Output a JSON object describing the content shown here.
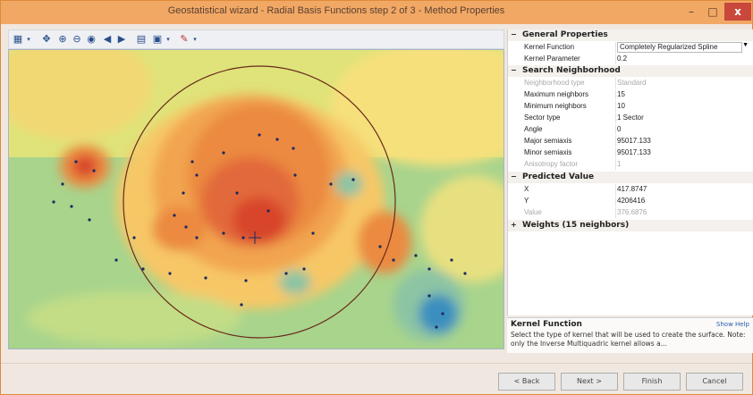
{
  "window": {
    "title": "Geostatistical wizard - Radial Basis Functions step 2 of 3 - Method Properties",
    "minimize_glyph": "–",
    "maximize_glyph": "□",
    "close_glyph": "x"
  },
  "toolbar": {
    "icons": [
      "layers-icon",
      "dropdown-arrow-icon",
      "pan-icon",
      "zoom-in-icon",
      "zoom-out-icon",
      "full-extent-icon",
      "back-icon",
      "forward-icon",
      "legend-icon",
      "display-icon",
      "dropdown-arrow-icon",
      "pencil-icon",
      "dropdown-arrow-icon"
    ]
  },
  "properties": {
    "general": {
      "label": "General Properties",
      "expander": "−",
      "rows": [
        {
          "key": "Kernel Function",
          "value": "Completely Regularized Spline"
        },
        {
          "key": "Kernel Parameter",
          "value": "0.2"
        }
      ]
    },
    "search": {
      "label": "Search Neighborhood",
      "expander": "−",
      "rows": [
        {
          "key": "Neighborhood type",
          "value": "Standard",
          "dim": true
        },
        {
          "key": "Maximum neighbors",
          "value": "15"
        },
        {
          "key": "Minimum neighbors",
          "value": "10"
        },
        {
          "key": "Sector type",
          "value": "1 Sector"
        },
        {
          "key": "Angle",
          "value": "0"
        },
        {
          "key": "Major semiaxis",
          "value": "95017.133"
        },
        {
          "key": "Minor semiaxis",
          "value": "95017.133"
        },
        {
          "key": "Anisotropy factor",
          "value": "1",
          "dim": true
        }
      ]
    },
    "predicted": {
      "label": "Predicted Value",
      "expander": "−",
      "rows": [
        {
          "key": "X",
          "value": "417.8747"
        },
        {
          "key": "Y",
          "value": "4206416"
        },
        {
          "key": "Value",
          "value": "376.6876",
          "dim": true
        }
      ]
    },
    "weights": {
      "label": "Weights (15 neighbors)",
      "expander": "+"
    }
  },
  "help": {
    "title": "Kernel Function",
    "link": "Show Help",
    "body": "Select the type of kernel that will be used to create the surface. Note: only the Inverse Multiquadric kernel allows a..."
  },
  "footer": {
    "back": "< Back",
    "next": "Next >",
    "finish": "Finish",
    "cancel": "Cancel"
  },
  "colors": {
    "titlebar": "#f2a865",
    "surface_high": "#d8452c",
    "surface_low": "#3b8fbf",
    "close": "#c9473b"
  }
}
